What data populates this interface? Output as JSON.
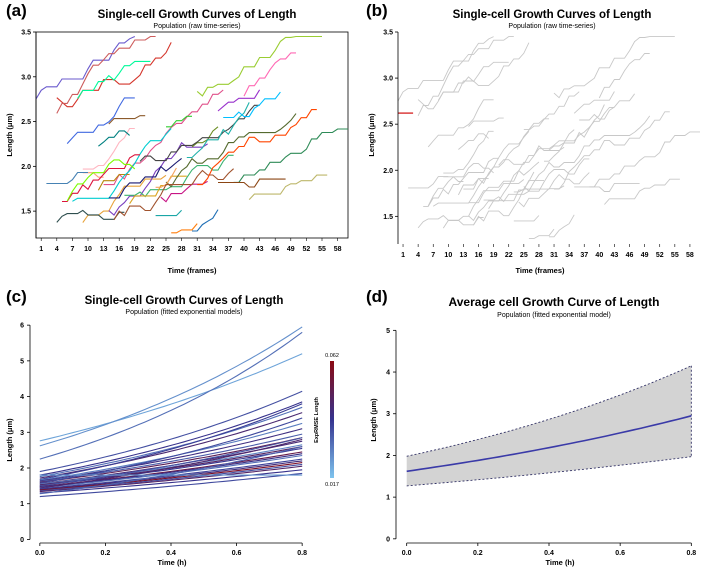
{
  "panels": {
    "a": {
      "letter": "(a)",
      "chart_data": {
        "type": "line",
        "title": "Single-cell Growth Curves of Length",
        "subtitle": "Population (raw time-series)",
        "xlabel": "Time (frames)",
        "ylabel": "Length (μm)",
        "xlim": [
          0,
          60
        ],
        "ylim": [
          1.2,
          3.5
        ],
        "xticks": [
          1,
          4,
          7,
          10,
          13,
          16,
          19,
          22,
          25,
          28,
          31,
          34,
          37,
          40,
          43,
          46,
          49,
          52,
          55,
          58
        ],
        "yticks": [
          1.5,
          2.0,
          2.5,
          3.0,
          3.5
        ],
        "series_count": 40,
        "highlighted_series": null
      }
    },
    "b": {
      "letter": "(b)",
      "chart_data": {
        "type": "line",
        "title": "Single-cell Growth Curves of Length",
        "subtitle": "Population (raw time-series)",
        "xlabel": "Time (frames)",
        "ylabel": "Length (μm)",
        "xlim": [
          0,
          60
        ],
        "ylim": [
          1.2,
          3.5
        ],
        "xticks": [
          1,
          4,
          7,
          10,
          13,
          16,
          19,
          22,
          25,
          28,
          31,
          34,
          37,
          40,
          43,
          46,
          49,
          52,
          55,
          58
        ],
        "yticks": [
          1.5,
          2.0,
          2.5,
          3.0,
          3.5
        ],
        "series_count": 40,
        "highlighted_series": {
          "x": [
            0,
            3
          ],
          "y": [
            2.62,
            2.62
          ],
          "color": "#d62020"
        }
      }
    },
    "c": {
      "letter": "(c)",
      "chart_data": {
        "type": "line",
        "title": "Single-cell Growth Curves of Length",
        "subtitle": "Population (fitted exponential models)",
        "xlabel": "Time (h)",
        "ylabel": "Length (μm)",
        "xlim": [
          -0.03,
          0.83
        ],
        "ylim": [
          -0.1,
          6.2
        ],
        "xticks": [
          0.0,
          0.2,
          0.4,
          0.6,
          0.8
        ],
        "yticks": [
          0,
          1,
          2,
          3,
          4,
          5,
          6
        ],
        "colorbar": {
          "label": "ExpRMSE Length",
          "max": "0.062",
          "min": "0.017"
        },
        "series": [
          {
            "a": 2.76,
            "e": 5.2,
            "err": 0.022
          },
          {
            "a": 2.62,
            "e": 5.95,
            "err": 0.025
          },
          {
            "a": 2.25,
            "e": 5.8,
            "err": 0.03
          },
          {
            "a": 1.9,
            "e": 4.15,
            "err": 0.035
          },
          {
            "a": 1.8,
            "e": 3.85,
            "err": 0.04
          },
          {
            "a": 1.76,
            "e": 3.7,
            "err": 0.03
          },
          {
            "a": 1.72,
            "e": 3.55,
            "err": 0.045
          },
          {
            "a": 1.68,
            "e": 3.8,
            "err": 0.038
          },
          {
            "a": 1.66,
            "e": 3.25,
            "err": 0.028
          },
          {
            "a": 1.64,
            "e": 3.1,
            "err": 0.042
          },
          {
            "a": 1.62,
            "e": 2.95,
            "err": 0.033
          },
          {
            "a": 1.6,
            "e": 2.85,
            "err": 0.05
          },
          {
            "a": 1.58,
            "e": 3.4,
            "err": 0.036
          },
          {
            "a": 1.56,
            "e": 2.75,
            "err": 0.044
          },
          {
            "a": 1.55,
            "e": 2.65,
            "err": 0.027
          },
          {
            "a": 1.53,
            "e": 2.6,
            "err": 0.048
          },
          {
            "a": 1.51,
            "e": 2.55,
            "err": 0.039
          },
          {
            "a": 1.5,
            "e": 2.85,
            "err": 0.034
          },
          {
            "a": 1.48,
            "e": 2.45,
            "err": 0.052
          },
          {
            "a": 1.47,
            "e": 2.4,
            "err": 0.041
          },
          {
            "a": 1.45,
            "e": 2.35,
            "err": 0.03
          },
          {
            "a": 1.44,
            "e": 2.8,
            "err": 0.046
          },
          {
            "a": 1.42,
            "e": 2.25,
            "err": 0.037
          },
          {
            "a": 1.4,
            "e": 2.2,
            "err": 0.043
          },
          {
            "a": 1.38,
            "e": 2.15,
            "err": 0.058
          },
          {
            "a": 1.36,
            "e": 2.1,
            "err": 0.035
          },
          {
            "a": 1.34,
            "e": 2.05,
            "err": 0.047
          },
          {
            "a": 1.3,
            "e": 1.95,
            "err": 0.04
          },
          {
            "a": 1.28,
            "e": 2.6,
            "err": 0.032
          },
          {
            "a": 1.2,
            "e": 1.85,
            "err": 0.036
          },
          {
            "a": 1.8,
            "e": 1.8,
            "err": 0.024
          }
        ]
      }
    },
    "d": {
      "letter": "(d)",
      "chart_data": {
        "type": "area",
        "title": "Average cell Growth Curve of Length",
        "subtitle": "Population (fitted exponential model)",
        "xlabel": "Time (h)",
        "ylabel": "Length (μm)",
        "xlim": [
          -0.03,
          0.83
        ],
        "ylim": [
          -0.1,
          5.2
        ],
        "xticks": [
          0.0,
          0.2,
          0.4,
          0.6,
          0.8
        ],
        "yticks": [
          0,
          1,
          2,
          3,
          4,
          5
        ],
        "mean": {
          "start": 1.62,
          "end": 2.95,
          "color": "#3a3aa8"
        },
        "upper": {
          "start": 1.98,
          "end": 4.15
        },
        "lower": {
          "start": 1.27,
          "end": 1.97
        },
        "band_color": "#d3d3d3"
      }
    }
  }
}
